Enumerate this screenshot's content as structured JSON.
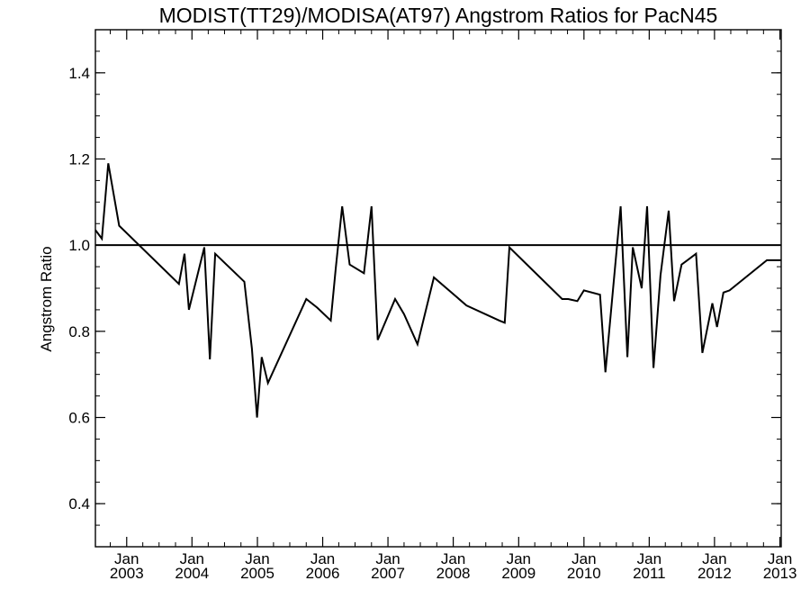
{
  "chart_data": {
    "type": "line",
    "title": "MODIST(TT29)/MODISA(AT97)  Angstrom Ratios for PacN45",
    "ylabel": "Angstrom Ratio",
    "xlabel": "",
    "xlim": [
      "2002-07-10",
      "2013-01-08"
    ],
    "ylim": [
      0.3,
      1.5
    ],
    "grid": false,
    "legend": "none",
    "reference_line": 1.0,
    "yticks": [
      {
        "value": 0.4,
        "label": "0.4"
      },
      {
        "value": 0.6,
        "label": "0.6"
      },
      {
        "value": 0.8,
        "label": "0.8"
      },
      {
        "value": 1.0,
        "label": "1.0"
      },
      {
        "value": 1.2,
        "label": "1.2"
      },
      {
        "value": 1.4,
        "label": "1.4"
      }
    ],
    "xticks": [
      {
        "date": "2003-01-01",
        "month": "Jan",
        "year": "2003"
      },
      {
        "date": "2004-01-01",
        "month": "Jan",
        "year": "2004"
      },
      {
        "date": "2005-01-01",
        "month": "Jan",
        "year": "2005"
      },
      {
        "date": "2006-01-01",
        "month": "Jan",
        "year": "2006"
      },
      {
        "date": "2007-01-01",
        "month": "Jan",
        "year": "2007"
      },
      {
        "date": "2008-01-01",
        "month": "Jan",
        "year": "2008"
      },
      {
        "date": "2009-01-01",
        "month": "Jan",
        "year": "2009"
      },
      {
        "date": "2010-01-01",
        "month": "Jan",
        "year": "2010"
      },
      {
        "date": "2011-01-01",
        "month": "Jan",
        "year": "2011"
      },
      {
        "date": "2012-01-01",
        "month": "Jan",
        "year": "2012"
      },
      {
        "date": "2013-01-01",
        "month": "Jan",
        "year": "2013"
      }
    ],
    "series": [
      {
        "color": "#000000",
        "x": [
          "2002-07-10",
          "2002-08-15",
          "2002-09-20",
          "2002-11-20",
          "2003-10-20",
          "2003-11-20",
          "2003-12-15",
          "2004-03-10",
          "2004-04-10",
          "2004-05-10",
          "2004-10-20",
          "2004-12-01",
          "2004-12-30",
          "2005-01-25",
          "2005-03-01",
          "2005-10-01",
          "2005-12-01",
          "2006-02-15",
          "2006-03-15",
          "2006-04-20",
          "2006-06-01",
          "2006-08-20",
          "2006-10-01",
          "2006-11-05",
          "2007-02-10",
          "2007-04-01",
          "2007-06-15",
          "2007-09-15",
          "2008-03-15",
          "2008-09-15",
          "2008-10-15",
          "2008-11-10",
          "2009-09-01",
          "2009-10-05",
          "2009-11-25",
          "2010-01-01",
          "2010-04-01",
          "2010-05-01",
          "2010-07-25",
          "2010-09-01",
          "2010-10-01",
          "2010-11-20",
          "2010-12-20",
          "2011-01-25",
          "2011-03-05",
          "2011-04-20",
          "2011-05-20",
          "2011-07-01",
          "2011-09-20",
          "2011-10-25",
          "2011-12-20",
          "2012-01-15",
          "2012-02-20",
          "2012-03-25",
          "2012-10-20",
          "2012-11-25",
          "2013-01-08"
        ],
        "y": [
          1.035,
          1.015,
          1.19,
          1.045,
          0.91,
          0.98,
          0.85,
          0.995,
          0.735,
          0.98,
          0.915,
          0.76,
          0.6,
          0.74,
          0.68,
          0.875,
          0.855,
          0.825,
          0.945,
          1.09,
          0.955,
          0.935,
          1.09,
          0.78,
          0.875,
          0.84,
          0.77,
          0.925,
          0.86,
          0.825,
          0.82,
          0.995,
          0.875,
          0.875,
          0.87,
          0.895,
          0.885,
          0.705,
          1.09,
          0.74,
          0.995,
          0.9,
          1.09,
          0.715,
          0.93,
          1.08,
          0.87,
          0.955,
          0.98,
          0.75,
          0.865,
          0.81,
          0.89,
          0.895,
          0.965,
          0.965,
          0.965
        ]
      }
    ]
  }
}
